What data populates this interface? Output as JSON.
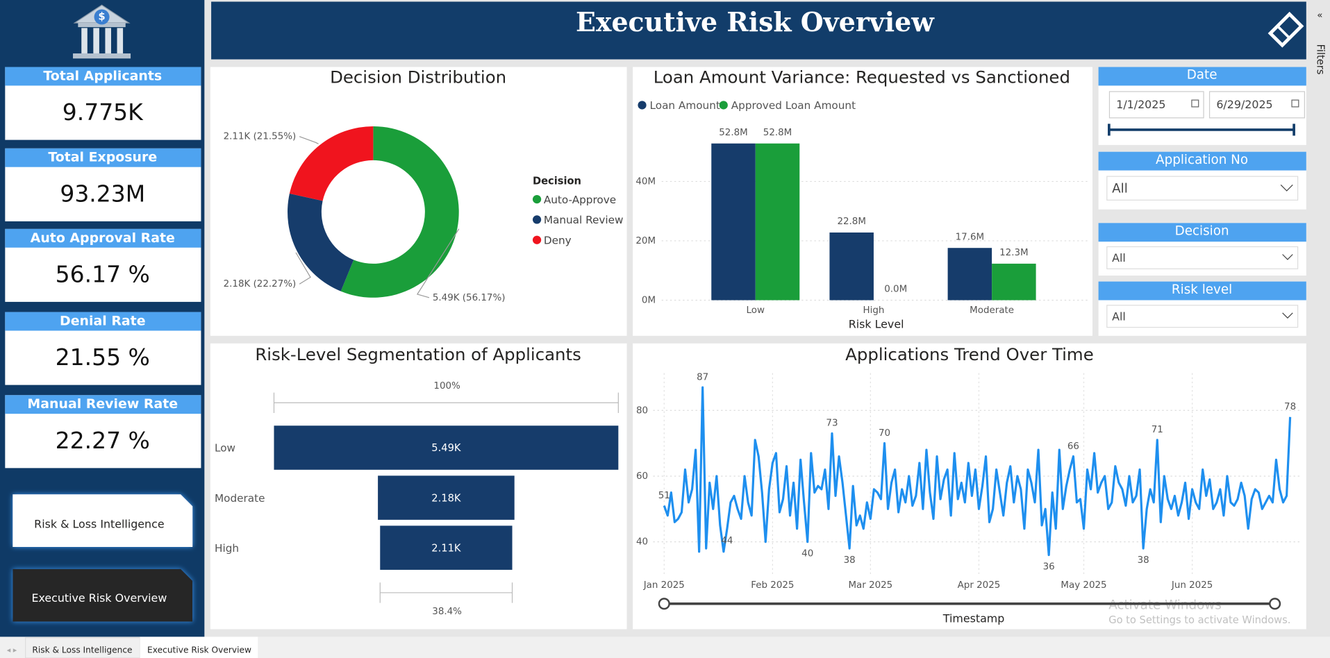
{
  "header": {
    "title": "Executive Risk Overview"
  },
  "sidebar": {
    "kpis": [
      {
        "label": "Total Applicants",
        "value": "9.775K"
      },
      {
        "label": "Total Exposure",
        "value": "93.23M"
      },
      {
        "label": "Auto Approval Rate",
        "value": "56.17 %"
      },
      {
        "label": "Denial Rate",
        "value": "21.55 %"
      },
      {
        "label": "Manual Review Rate",
        "value": "22.27 %"
      }
    ],
    "nav": [
      "Risk & Loss Intelligence",
      "Executive Risk Overview"
    ]
  },
  "filters_pane": "Filters",
  "slicers": {
    "date": {
      "title": "Date",
      "start": "1/1/2025",
      "end": "6/29/2025"
    },
    "dropdowns": [
      {
        "title": "Application No",
        "value": "All"
      },
      {
        "title": "Decision",
        "value": "All"
      },
      {
        "title": "Risk level",
        "value": "All"
      }
    ]
  },
  "tabs": [
    "Risk & Loss Intelligence",
    "Executive Risk Overview"
  ],
  "watermark": {
    "title": "Activate Windows",
    "text": "Go to Settings to activate Windows."
  },
  "chart_data": [
    {
      "type": "pie",
      "title": "Decision Distribution",
      "legend_title": "Decision",
      "categories": [
        "Auto-Approve",
        "Manual Review",
        "Deny"
      ],
      "values": [
        5491,
        2177,
        2107
      ],
      "value_labels": [
        "5.49K (56.17%)",
        "2.18K (22.27%)",
        "2.11K (21.55%)"
      ],
      "colors": [
        "#1a9e3a",
        "#163c6b",
        "#f0141e"
      ]
    },
    {
      "type": "bar",
      "title": "Loan Amount Variance: Requested vs Sanctioned",
      "x_label": "Risk Level",
      "categories": [
        "Low",
        "High",
        "Moderate"
      ],
      "series": [
        {
          "name": "Loan Amount",
          "color": "#163c6b",
          "values": [
            52800000,
            22800000,
            17600000
          ],
          "value_labels": [
            "52.8M",
            "22.8M",
            "17.6M"
          ]
        },
        {
          "name": "Approved Loan Amount",
          "color": "#1a9e3a",
          "values": [
            52800000,
            0,
            12300000
          ],
          "value_labels": [
            "52.8M",
            "0.0M",
            "12.3M"
          ]
        }
      ],
      "ylim": [
        0,
        60000000
      ],
      "yticks": [
        {
          "value": 0,
          "label": "0M"
        },
        {
          "value": 20000000,
          "label": "20M"
        },
        {
          "value": 40000000,
          "label": "40M"
        }
      ],
      "grid": true
    },
    {
      "type": "funnel",
      "title": "Risk-Level Segmentation of Applicants",
      "categories": [
        "Low",
        "Moderate",
        "High"
      ],
      "values": [
        5491,
        2177,
        2107
      ],
      "value_labels": [
        "5.49K",
        "2.18K",
        "2.11K"
      ],
      "top_label": "100%",
      "bottom_label": "38.4%",
      "color": "#163c6b"
    },
    {
      "type": "line",
      "title": "Applications Trend Over Time",
      "x_label": "Timestamp",
      "color": "#1e8fef",
      "categories": [
        "Jan 2025",
        null,
        null,
        null,
        null,
        null,
        null,
        null,
        null,
        null,
        null,
        null,
        null,
        null,
        null,
        null,
        null,
        null,
        null,
        null,
        null,
        null,
        null,
        null,
        null,
        null,
        null,
        null,
        null,
        null,
        null,
        "Feb 2025",
        null,
        null,
        null,
        null,
        null,
        null,
        null,
        null,
        null,
        null,
        null,
        null,
        null,
        null,
        null,
        null,
        null,
        null,
        null,
        null,
        null,
        null,
        null,
        null,
        null,
        null,
        null,
        "Mar 2025",
        null,
        null,
        null,
        null,
        null,
        null,
        null,
        null,
        null,
        null,
        null,
        null,
        null,
        null,
        null,
        null,
        null,
        null,
        null,
        null,
        null,
        null,
        null,
        null,
        null,
        null,
        null,
        null,
        null,
        null,
        "Apr 2025",
        null,
        null,
        null,
        null,
        null,
        null,
        null,
        null,
        null,
        null,
        null,
        null,
        null,
        null,
        null,
        null,
        null,
        null,
        null,
        null,
        null,
        null,
        null,
        null,
        null,
        null,
        null,
        null,
        null,
        "May 2025",
        null,
        null,
        null,
        null,
        null,
        null,
        null,
        null,
        null,
        null,
        null,
        null,
        null,
        null,
        null,
        null,
        null,
        null,
        null,
        null,
        null,
        null,
        null,
        null,
        null,
        null,
        null,
        null,
        null,
        null,
        "Jun 2025",
        null,
        null,
        null,
        null,
        null,
        null,
        null,
        null,
        null,
        null,
        null,
        null,
        null,
        null,
        null,
        null,
        null,
        null,
        null,
        null,
        null,
        null,
        null,
        null,
        null,
        null,
        null,
        null
      ],
      "values": [
        51,
        48,
        55,
        46,
        47,
        49,
        62,
        52,
        56,
        68,
        37,
        87,
        38,
        58,
        50,
        60,
        45,
        37,
        44,
        52,
        54,
        50,
        47,
        60,
        52,
        48,
        71,
        66,
        55,
        40,
        56,
        64,
        67,
        49,
        53,
        63,
        48,
        58,
        44,
        65,
        52,
        40,
        67,
        55,
        57,
        56,
        62,
        50,
        73,
        54,
        66,
        58,
        48,
        38,
        57,
        45,
        48,
        44,
        52,
        47,
        56,
        55,
        53,
        70,
        50,
        58,
        62,
        49,
        56,
        52,
        60,
        51,
        54,
        64,
        50,
        68,
        55,
        47,
        66,
        53,
        59,
        62,
        48,
        67,
        53,
        58,
        52,
        64,
        54,
        62,
        50,
        57,
        66,
        46,
        50,
        62,
        55,
        48,
        58,
        63,
        52,
        60,
        56,
        44,
        62,
        58,
        52,
        68,
        45,
        50,
        36,
        55,
        44,
        68,
        50,
        57,
        62,
        66,
        52,
        53,
        44,
        62,
        56,
        67,
        55,
        58,
        60,
        50,
        52,
        63,
        58,
        56,
        51,
        60,
        52,
        54,
        62,
        38,
        50,
        56,
        52,
        71,
        46,
        60,
        53,
        50,
        54,
        48,
        52,
        58,
        47,
        56,
        52,
        50,
        62,
        54,
        59,
        50,
        52,
        56,
        48,
        60,
        52,
        51,
        53,
        58,
        54,
        44,
        53,
        56,
        55,
        50,
        52,
        54,
        52,
        65,
        56,
        52,
        54,
        78
      ],
      "value_labels": [
        "51",
        null,
        null,
        null,
        null,
        null,
        null,
        null,
        null,
        null,
        null,
        "87",
        null,
        null,
        null,
        null,
        null,
        null,
        "44",
        null,
        null,
        null,
        null,
        null,
        null,
        null,
        null,
        null,
        null,
        null,
        null,
        null,
        null,
        null,
        null,
        null,
        null,
        null,
        null,
        null,
        null,
        "40",
        null,
        null,
        null,
        null,
        null,
        null,
        "73",
        null,
        null,
        null,
        null,
        "38",
        null,
        null,
        null,
        null,
        null,
        null,
        null,
        null,
        null,
        "70",
        null,
        null,
        null,
        null,
        null,
        null,
        null,
        null,
        null,
        null,
        null,
        null,
        null,
        null,
        null,
        null,
        null,
        null,
        null,
        null,
        null,
        null,
        null,
        null,
        null,
        null,
        null,
        null,
        null,
        null,
        null,
        null,
        null,
        null,
        null,
        null,
        null,
        null,
        null,
        null,
        null,
        null,
        null,
        null,
        null,
        null,
        "36",
        null,
        null,
        null,
        null,
        null,
        null,
        "66",
        null,
        null,
        null,
        null,
        null,
        null,
        null,
        null,
        null,
        null,
        null,
        null,
        null,
        null,
        null,
        null,
        null,
        null,
        null,
        "38",
        null,
        null,
        null,
        "71",
        null,
        null,
        null,
        null,
        null,
        null,
        null,
        null,
        null,
        null,
        null,
        null,
        null,
        null,
        null,
        null,
        null,
        null,
        null,
        null,
        null,
        null,
        null,
        null,
        null,
        null,
        null,
        null,
        null,
        null,
        null,
        null,
        null,
        null,
        null,
        null,
        null,
        "78"
      ],
      "ylim": [
        30,
        90
      ],
      "yticks": [
        40,
        60,
        80
      ],
      "grid": true
    }
  ]
}
